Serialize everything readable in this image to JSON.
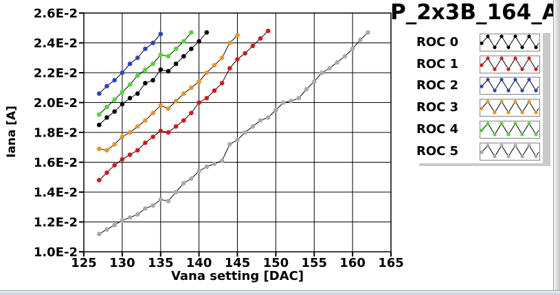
{
  "title": "P_2x3B_164_A",
  "chart_data": {
    "type": "line",
    "title": "P_2x3B_164_A",
    "xlabel": "Vana setting [DAC]",
    "ylabel": "Iana [A]",
    "xlim": [
      125,
      165
    ],
    "ylim_e2": [
      1.0,
      2.6
    ],
    "y_unit_note": "y values expressed in units of 1E-2 A",
    "grid": true,
    "legend_position": "right-panel",
    "x_ticks": [
      125,
      130,
      135,
      140,
      145,
      150,
      155,
      160,
      165
    ],
    "y_ticks": [
      {
        "value": 1.0,
        "label": "1.0E-2"
      },
      {
        "value": 1.2,
        "label": "1.2E-2"
      },
      {
        "value": 1.4,
        "label": "1.4E-2"
      },
      {
        "value": 1.6,
        "label": "1.6E-2"
      },
      {
        "value": 1.8,
        "label": "1.8E-2"
      },
      {
        "value": 2.0,
        "label": "2.0E-2"
      },
      {
        "value": 2.2,
        "label": "2.2E-2"
      },
      {
        "value": 2.4,
        "label": "2.4E-2"
      },
      {
        "value": 2.6,
        "label": "2.6E-2"
      }
    ],
    "series": [
      {
        "name": "ROC 0",
        "color": "#000000",
        "x": [
          127,
          128,
          129,
          130,
          131,
          132,
          133,
          134,
          135,
          136,
          137,
          138,
          139,
          140,
          141
        ],
        "y_e2": [
          1.85,
          1.9,
          1.94,
          1.99,
          2.03,
          2.06,
          2.13,
          2.15,
          2.22,
          2.21,
          2.26,
          2.31,
          2.36,
          2.41,
          2.47
        ]
      },
      {
        "name": "ROC 1",
        "color": "#e01313",
        "x": [
          127,
          128,
          129,
          130,
          131,
          132,
          133,
          134,
          135,
          136,
          137,
          138,
          139,
          140,
          141,
          142,
          143,
          144,
          145,
          146,
          147,
          148,
          149
        ],
        "y_e2": [
          1.48,
          1.53,
          1.58,
          1.62,
          1.65,
          1.68,
          1.73,
          1.77,
          1.81,
          1.8,
          1.84,
          1.88,
          1.93,
          2.0,
          2.03,
          2.08,
          2.13,
          2.23,
          2.29,
          2.33,
          2.38,
          2.43,
          2.48
        ]
      },
      {
        "name": "ROC 2",
        "color": "#2545c8",
        "x": [
          127,
          128,
          129,
          130,
          131,
          132,
          133,
          134,
          135
        ],
        "y_e2": [
          2.06,
          2.11,
          2.15,
          2.2,
          2.26,
          2.3,
          2.36,
          2.4,
          2.46
        ]
      },
      {
        "name": "ROC 3",
        "color": "#f09220",
        "x": [
          127,
          128,
          129,
          130,
          131,
          132,
          133,
          134,
          135,
          136,
          137,
          138,
          139,
          140,
          141,
          142,
          143,
          144,
          145
        ],
        "y_e2": [
          1.69,
          1.68,
          1.72,
          1.77,
          1.8,
          1.84,
          1.88,
          1.93,
          1.98,
          1.96,
          2.01,
          2.06,
          2.1,
          2.14,
          2.2,
          2.25,
          2.3,
          2.4,
          2.45
        ]
      },
      {
        "name": "ROC 4",
        "color": "#47dd26",
        "x": [
          127,
          128,
          129,
          130,
          131,
          132,
          133,
          134,
          135,
          136,
          137,
          138,
          139
        ],
        "y_e2": [
          1.92,
          1.97,
          2.02,
          2.07,
          2.12,
          2.18,
          2.22,
          2.26,
          2.32,
          2.31,
          2.36,
          2.41,
          2.47
        ]
      },
      {
        "name": "ROC 5",
        "color": "#a9a9a9",
        "x": [
          127,
          128,
          129,
          130,
          131,
          132,
          133,
          134,
          135,
          136,
          137,
          138,
          139,
          140,
          141,
          142,
          143,
          144,
          145,
          146,
          147,
          148,
          149,
          150,
          151,
          152,
          153,
          154,
          155,
          156,
          157,
          158,
          159,
          160,
          161,
          162
        ],
        "y_e2": [
          1.12,
          1.15,
          1.18,
          1.21,
          1.23,
          1.25,
          1.29,
          1.31,
          1.35,
          1.34,
          1.4,
          1.46,
          1.49,
          1.54,
          1.57,
          1.59,
          1.61,
          1.72,
          1.75,
          1.8,
          1.84,
          1.88,
          1.9,
          1.95,
          2.0,
          2.01,
          2.03,
          2.09,
          2.14,
          2.2,
          2.23,
          2.27,
          2.31,
          2.36,
          2.42,
          2.47
        ]
      }
    ]
  },
  "legend": {
    "items": [
      {
        "label": "ROC 0",
        "color": "#000000"
      },
      {
        "label": "ROC 1",
        "color": "#e01313"
      },
      {
        "label": "ROC 2",
        "color": "#2545c8"
      },
      {
        "label": "ROC 3",
        "color": "#f09220"
      },
      {
        "label": "ROC 4",
        "color": "#47dd26"
      },
      {
        "label": "ROC 5",
        "color": "#a9a9a9"
      }
    ]
  },
  "palette": {
    "background": "#ffffff",
    "grid": "#000000",
    "series_line": "#000000",
    "legend_shadow": "#c9c9c9",
    "bevel_gray": "#c5c5c5",
    "bevel_blue": "#c7cfdd"
  }
}
